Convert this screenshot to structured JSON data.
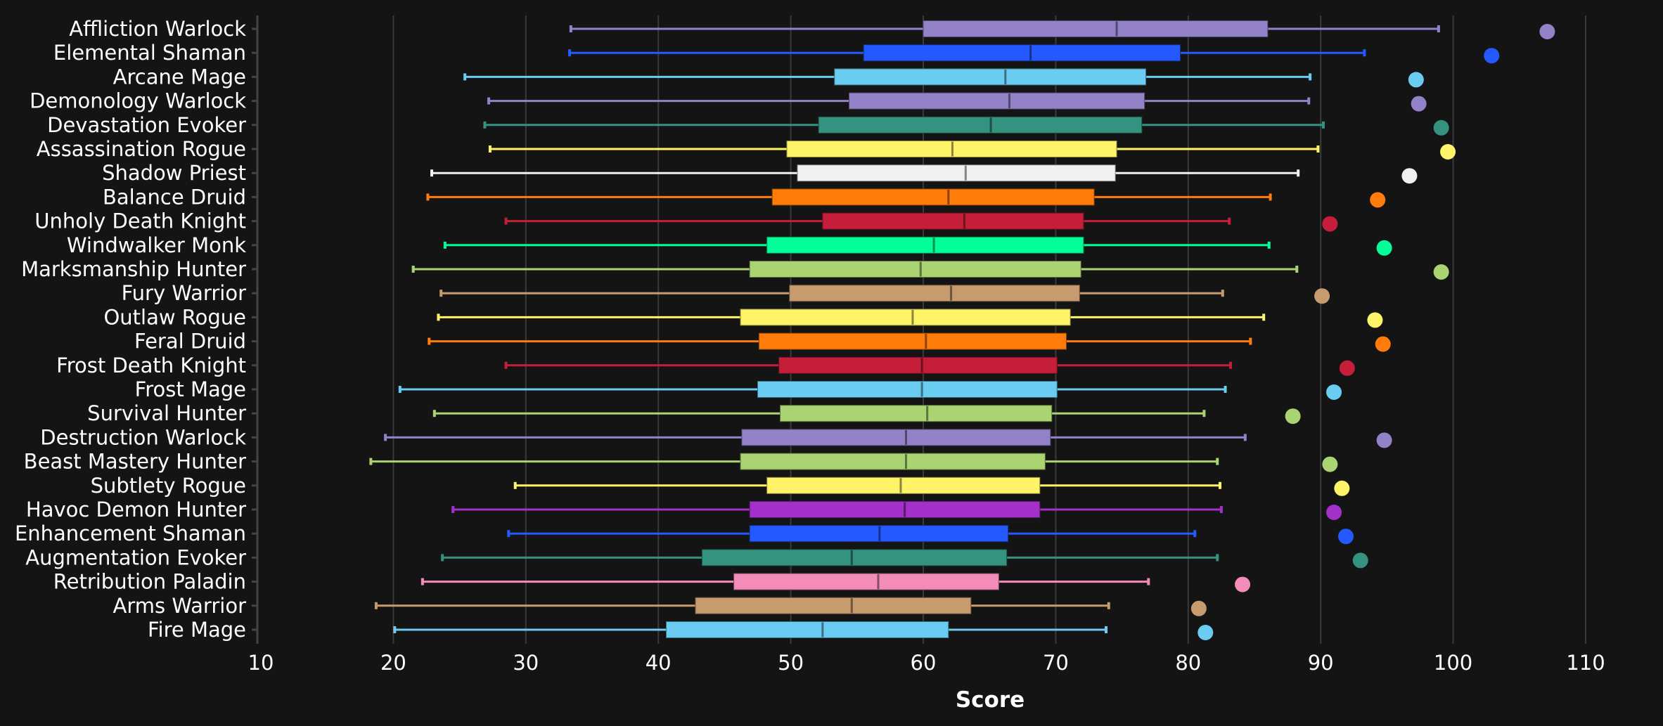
{
  "chart_data": {
    "type": "box",
    "title": "",
    "xlabel": "Score",
    "ylabel": "",
    "xlim": [
      10,
      110
    ],
    "xticks": [
      10,
      20,
      30,
      40,
      50,
      60,
      70,
      80,
      90,
      100,
      110
    ],
    "grid": true,
    "legend": "none",
    "series": [
      {
        "name": "Affliction Warlock",
        "color": "#9482c9",
        "min": 33.4,
        "q1": 60.0,
        "median": 74.6,
        "q3": 86.0,
        "max": 98.9,
        "dot": 107.1
      },
      {
        "name": "Elemental Shaman",
        "color": "#2459ff",
        "min": 33.3,
        "q1": 55.5,
        "median": 68.1,
        "q3": 79.4,
        "max": 93.3,
        "dot": 102.9
      },
      {
        "name": "Arcane Mage",
        "color": "#69ccf0",
        "min": 25.4,
        "q1": 53.3,
        "median": 66.2,
        "q3": 76.8,
        "max": 89.2,
        "dot": 97.2
      },
      {
        "name": "Demonology Warlock",
        "color": "#9482c9",
        "min": 27.2,
        "q1": 54.4,
        "median": 66.5,
        "q3": 76.7,
        "max": 89.1,
        "dot": 97.4
      },
      {
        "name": "Devastation Evoker",
        "color": "#33937f",
        "min": 26.9,
        "q1": 52.1,
        "median": 65.1,
        "q3": 76.5,
        "max": 90.2,
        "dot": 99.1
      },
      {
        "name": "Assassination Rogue",
        "color": "#fff468",
        "min": 27.3,
        "q1": 49.7,
        "median": 62.2,
        "q3": 74.6,
        "max": 89.8,
        "dot": 99.6
      },
      {
        "name": "Shadow Priest",
        "color": "#f0f0f0",
        "min": 22.9,
        "q1": 50.5,
        "median": 63.2,
        "q3": 74.5,
        "max": 88.3,
        "dot": 96.7
      },
      {
        "name": "Balance Druid",
        "color": "#ff7c0a",
        "min": 22.6,
        "q1": 48.6,
        "median": 61.9,
        "q3": 72.9,
        "max": 86.2,
        "dot": 94.3
      },
      {
        "name": "Unholy Death Knight",
        "color": "#c41e3a",
        "min": 28.5,
        "q1": 52.4,
        "median": 63.1,
        "q3": 72.1,
        "max": 83.1,
        "dot": 90.7
      },
      {
        "name": "Windwalker Monk",
        "color": "#00ff98",
        "min": 23.9,
        "q1": 48.2,
        "median": 60.8,
        "q3": 72.1,
        "max": 86.1,
        "dot": 94.8
      },
      {
        "name": "Marksmanship Hunter",
        "color": "#aad372",
        "min": 21.5,
        "q1": 46.9,
        "median": 59.8,
        "q3": 71.9,
        "max": 88.2,
        "dot": 99.1
      },
      {
        "name": "Fury Warrior",
        "color": "#c69b6d",
        "min": 23.6,
        "q1": 49.9,
        "median": 62.1,
        "q3": 71.8,
        "max": 82.6,
        "dot": 90.1
      },
      {
        "name": "Outlaw Rogue",
        "color": "#fff468",
        "min": 23.4,
        "q1": 46.2,
        "median": 59.2,
        "q3": 71.1,
        "max": 85.7,
        "dot": 94.1
      },
      {
        "name": "Feral Druid",
        "color": "#ff7c0a",
        "min": 22.7,
        "q1": 47.6,
        "median": 60.2,
        "q3": 70.8,
        "max": 84.7,
        "dot": 94.7
      },
      {
        "name": "Frost Death Knight",
        "color": "#c41e3a",
        "min": 28.5,
        "q1": 49.1,
        "median": 59.9,
        "q3": 70.1,
        "max": 83.2,
        "dot": 92.0
      },
      {
        "name": "Frost Mage",
        "color": "#69ccf0",
        "min": 20.5,
        "q1": 47.5,
        "median": 59.9,
        "q3": 70.1,
        "max": 82.8,
        "dot": 91.0
      },
      {
        "name": "Survival Hunter",
        "color": "#aad372",
        "min": 23.1,
        "q1": 49.2,
        "median": 60.3,
        "q3": 69.7,
        "max": 81.2,
        "dot": 87.9
      },
      {
        "name": "Destruction Warlock",
        "color": "#9482c9",
        "min": 19.4,
        "q1": 46.3,
        "median": 58.7,
        "q3": 69.6,
        "max": 84.3,
        "dot": 94.8
      },
      {
        "name": "Beast Mastery Hunter",
        "color": "#aad372",
        "min": 18.3,
        "q1": 46.2,
        "median": 58.7,
        "q3": 69.2,
        "max": 82.2,
        "dot": 90.7
      },
      {
        "name": "Subtlety Rogue",
        "color": "#fff468",
        "min": 29.2,
        "q1": 48.2,
        "median": 58.3,
        "q3": 68.8,
        "max": 82.4,
        "dot": 91.6
      },
      {
        "name": "Havoc Demon Hunter",
        "color": "#a330c9",
        "min": 24.5,
        "q1": 46.9,
        "median": 58.6,
        "q3": 68.8,
        "max": 82.5,
        "dot": 91.0
      },
      {
        "name": "Enhancement Shaman",
        "color": "#2459ff",
        "min": 28.7,
        "q1": 46.9,
        "median": 56.7,
        "q3": 66.4,
        "max": 80.5,
        "dot": 91.9
      },
      {
        "name": "Augmentation Evoker",
        "color": "#33937f",
        "min": 23.7,
        "q1": 43.3,
        "median": 54.6,
        "q3": 66.3,
        "max": 82.2,
        "dot": 93.0
      },
      {
        "name": "Retribution Paladin",
        "color": "#f48cba",
        "min": 22.2,
        "q1": 45.7,
        "median": 56.6,
        "q3": 65.7,
        "max": 77.0,
        "dot": 84.1
      },
      {
        "name": "Arms Warrior",
        "color": "#c69b6d",
        "min": 18.7,
        "q1": 42.8,
        "median": 54.6,
        "q3": 63.6,
        "max": 74.0,
        "dot": 80.8
      },
      {
        "name": "Fire Mage",
        "color": "#69ccf0",
        "min": 20.1,
        "q1": 40.6,
        "median": 52.4,
        "q3": 61.9,
        "max": 73.8,
        "dot": 81.3
      }
    ]
  }
}
